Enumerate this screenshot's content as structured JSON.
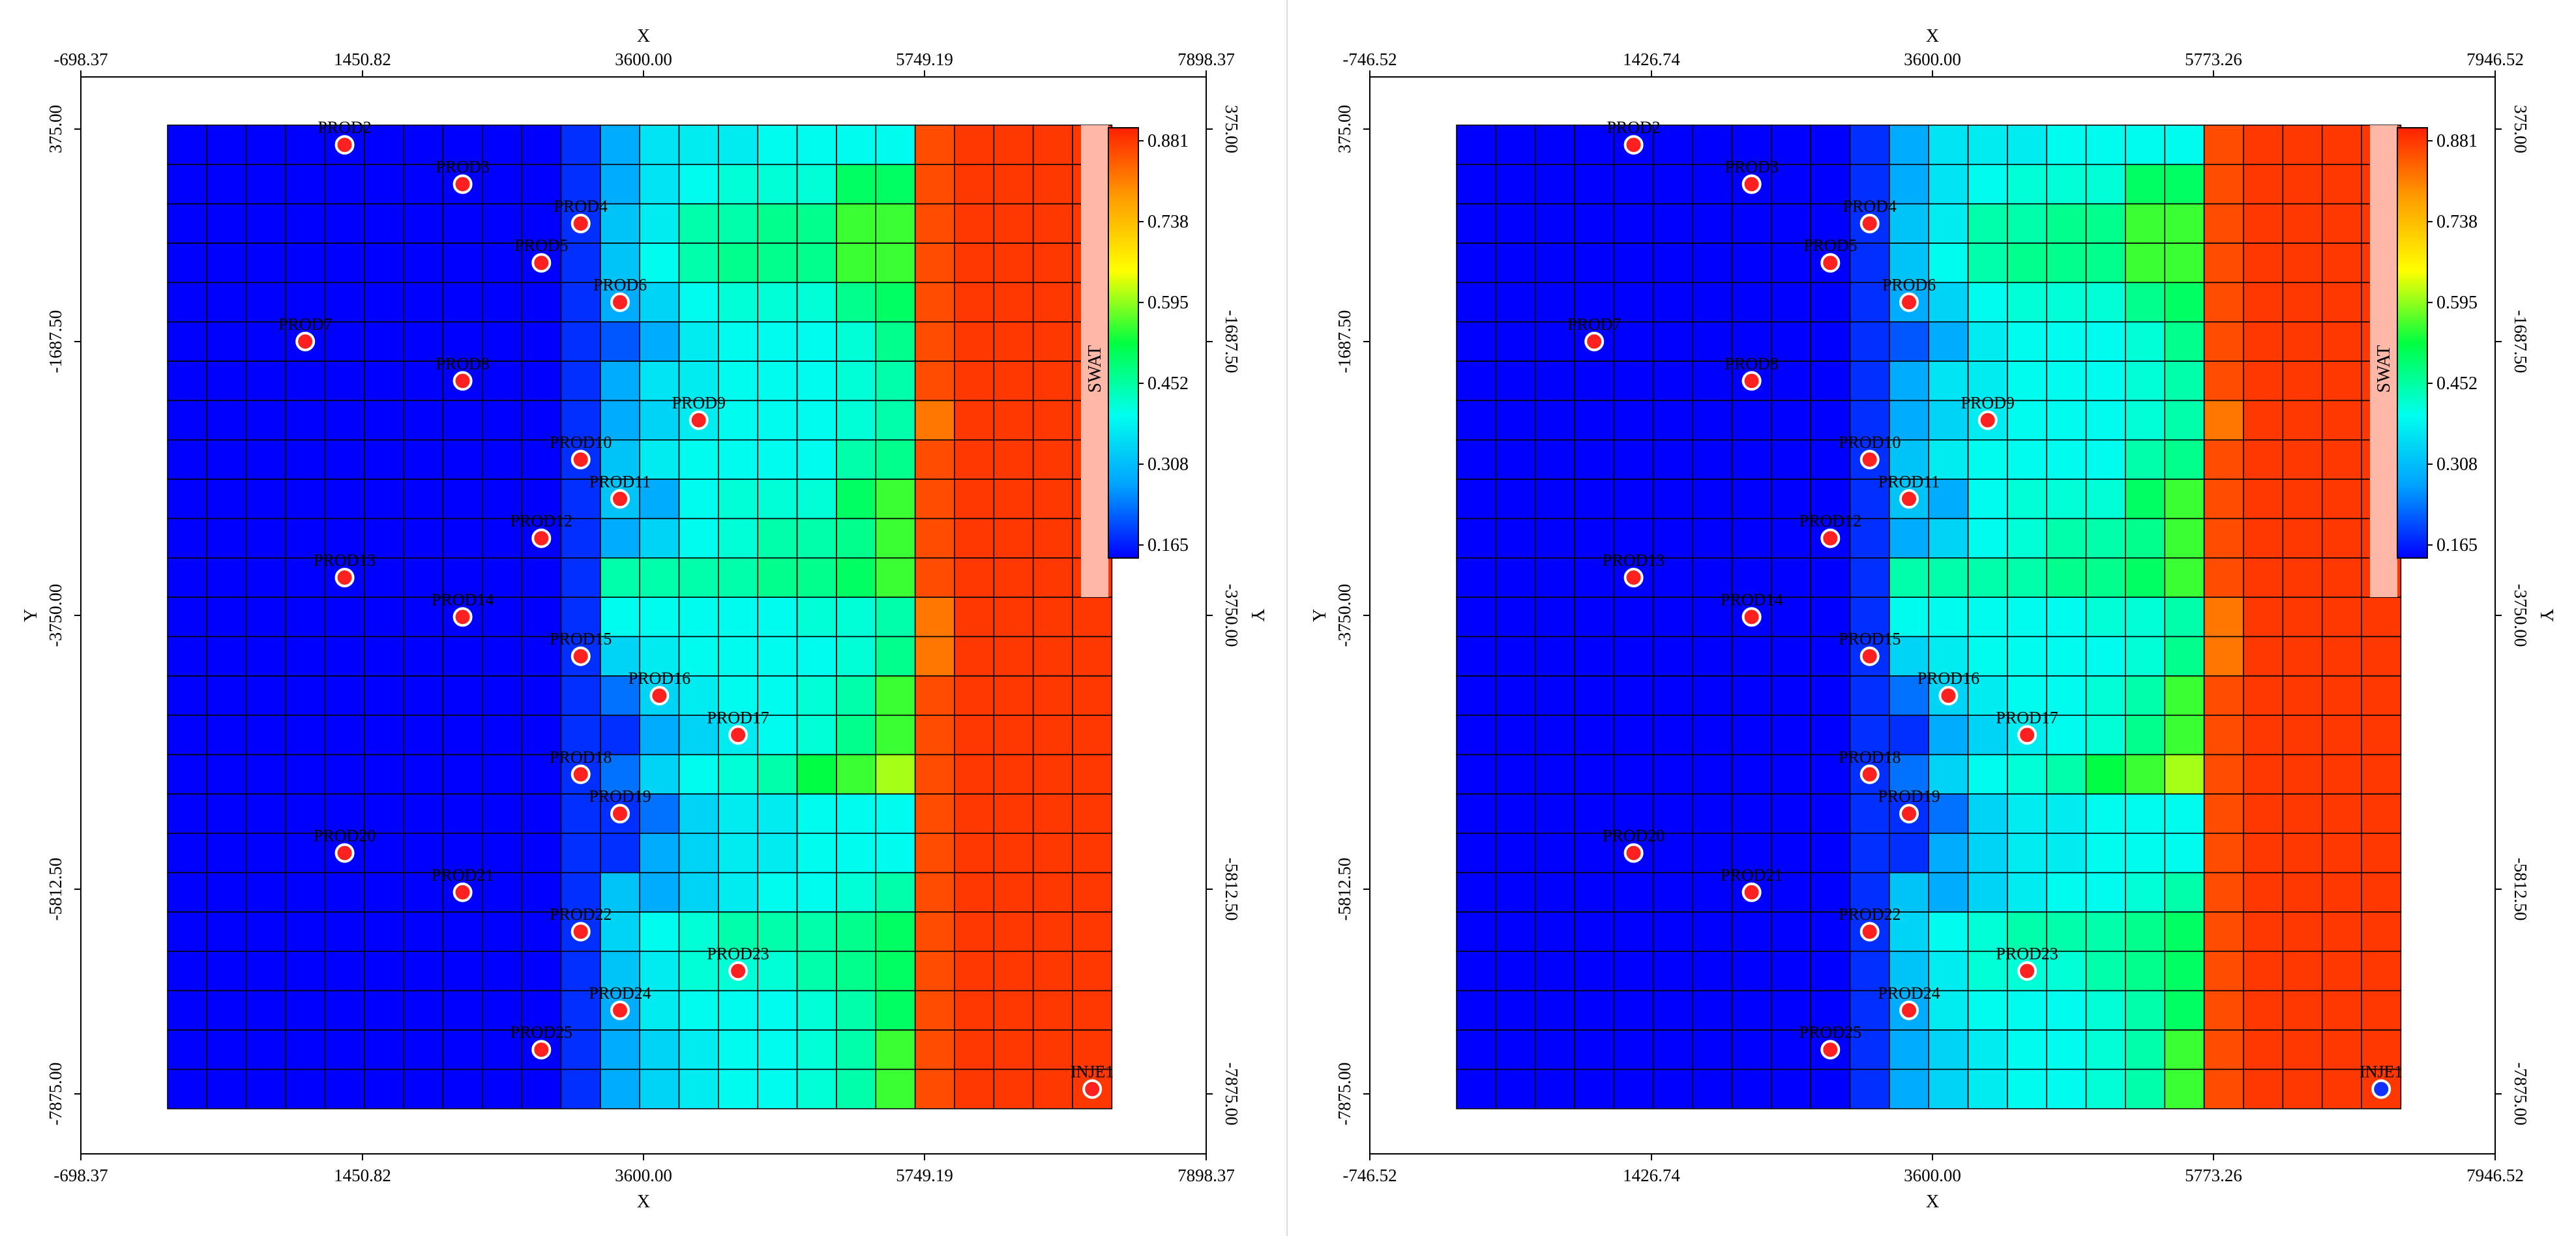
{
  "colors": {
    "well_producer": "#ff2020",
    "well_injector": "#1030ff",
    "cell_border": "#000000",
    "legend_tab": "#ffb8a8",
    "colorbar_stops": [
      "#0000ff",
      "#00a0ff",
      "#00ffee",
      "#00ff40",
      "#ffff00",
      "#ffa000",
      "#ff2000"
    ]
  },
  "grid_rows": [
    [
      0.165,
      0.165,
      0.165,
      0.165,
      0.165,
      0.165,
      0.165,
      0.165,
      0.165,
      0.165,
      0.2,
      0.3,
      0.37,
      0.38,
      0.38,
      0.4,
      0.4,
      0.4,
      0.4,
      0.84,
      0.86,
      0.86,
      0.86,
      0.86
    ],
    [
      0.165,
      0.165,
      0.165,
      0.165,
      0.165,
      0.165,
      0.165,
      0.165,
      0.165,
      0.165,
      0.2,
      0.3,
      0.37,
      0.4,
      0.42,
      0.42,
      0.42,
      0.5,
      0.5,
      0.84,
      0.86,
      0.86,
      0.86,
      0.86
    ],
    [
      0.165,
      0.165,
      0.165,
      0.165,
      0.165,
      0.165,
      0.165,
      0.165,
      0.165,
      0.165,
      0.2,
      0.33,
      0.38,
      0.45,
      0.45,
      0.47,
      0.47,
      0.55,
      0.55,
      0.84,
      0.86,
      0.86,
      0.86,
      0.86
    ],
    [
      0.165,
      0.165,
      0.165,
      0.165,
      0.165,
      0.165,
      0.165,
      0.165,
      0.165,
      0.165,
      0.2,
      0.33,
      0.4,
      0.45,
      0.47,
      0.47,
      0.47,
      0.55,
      0.55,
      0.84,
      0.86,
      0.86,
      0.86,
      0.86
    ],
    [
      0.165,
      0.165,
      0.165,
      0.165,
      0.165,
      0.165,
      0.165,
      0.165,
      0.165,
      0.165,
      0.2,
      0.3,
      0.35,
      0.4,
      0.42,
      0.42,
      0.42,
      0.47,
      0.5,
      0.84,
      0.86,
      0.86,
      0.86,
      0.86
    ],
    [
      0.165,
      0.165,
      0.165,
      0.165,
      0.165,
      0.165,
      0.165,
      0.165,
      0.165,
      0.165,
      0.2,
      0.23,
      0.3,
      0.38,
      0.4,
      0.4,
      0.4,
      0.42,
      0.47,
      0.84,
      0.86,
      0.86,
      0.86,
      0.86
    ],
    [
      0.165,
      0.165,
      0.165,
      0.165,
      0.165,
      0.165,
      0.165,
      0.165,
      0.165,
      0.165,
      0.2,
      0.3,
      0.37,
      0.38,
      0.4,
      0.4,
      0.4,
      0.42,
      0.45,
      0.84,
      0.86,
      0.86,
      0.86,
      0.86
    ],
    [
      0.165,
      0.165,
      0.165,
      0.165,
      0.165,
      0.165,
      0.165,
      0.165,
      0.165,
      0.165,
      0.2,
      0.3,
      0.35,
      0.38,
      0.4,
      0.4,
      0.4,
      0.42,
      0.45,
      0.8,
      0.86,
      0.86,
      0.86,
      0.86
    ],
    [
      0.165,
      0.165,
      0.165,
      0.165,
      0.165,
      0.165,
      0.165,
      0.165,
      0.165,
      0.165,
      0.2,
      0.33,
      0.38,
      0.4,
      0.4,
      0.4,
      0.4,
      0.45,
      0.47,
      0.84,
      0.86,
      0.86,
      0.86,
      0.86
    ],
    [
      0.165,
      0.165,
      0.165,
      0.165,
      0.165,
      0.165,
      0.165,
      0.165,
      0.165,
      0.165,
      0.2,
      0.33,
      0.3,
      0.4,
      0.42,
      0.42,
      0.42,
      0.5,
      0.55,
      0.84,
      0.86,
      0.86,
      0.86,
      0.86
    ],
    [
      0.165,
      0.165,
      0.165,
      0.165,
      0.165,
      0.165,
      0.165,
      0.165,
      0.165,
      0.165,
      0.2,
      0.3,
      0.35,
      0.4,
      0.42,
      0.45,
      0.45,
      0.47,
      0.55,
      0.84,
      0.86,
      0.86,
      0.86,
      0.86
    ],
    [
      0.165,
      0.165,
      0.165,
      0.165,
      0.165,
      0.165,
      0.165,
      0.165,
      0.165,
      0.165,
      0.2,
      0.45,
      0.45,
      0.45,
      0.45,
      0.47,
      0.47,
      0.5,
      0.55,
      0.84,
      0.86,
      0.86,
      0.86,
      0.86
    ],
    [
      0.165,
      0.165,
      0.165,
      0.165,
      0.165,
      0.165,
      0.165,
      0.165,
      0.165,
      0.165,
      0.2,
      0.4,
      0.4,
      0.4,
      0.4,
      0.4,
      0.42,
      0.42,
      0.45,
      0.8,
      0.86,
      0.86,
      0.86,
      0.86
    ],
    [
      0.165,
      0.165,
      0.165,
      0.165,
      0.165,
      0.165,
      0.165,
      0.165,
      0.165,
      0.165,
      0.2,
      0.35,
      0.38,
      0.4,
      0.4,
      0.4,
      0.4,
      0.42,
      0.47,
      0.8,
      0.86,
      0.86,
      0.86,
      0.86
    ],
    [
      0.165,
      0.165,
      0.165,
      0.165,
      0.165,
      0.165,
      0.165,
      0.165,
      0.165,
      0.165,
      0.2,
      0.25,
      0.35,
      0.38,
      0.4,
      0.4,
      0.42,
      0.45,
      0.55,
      0.84,
      0.86,
      0.86,
      0.86,
      0.86
    ],
    [
      0.165,
      0.165,
      0.165,
      0.165,
      0.165,
      0.165,
      0.165,
      0.165,
      0.165,
      0.165,
      0.2,
      0.2,
      0.3,
      0.35,
      0.38,
      0.4,
      0.42,
      0.47,
      0.55,
      0.84,
      0.86,
      0.86,
      0.86,
      0.86
    ],
    [
      0.165,
      0.165,
      0.165,
      0.165,
      0.165,
      0.165,
      0.165,
      0.165,
      0.165,
      0.165,
      0.2,
      0.25,
      0.35,
      0.4,
      0.42,
      0.45,
      0.52,
      0.55,
      0.6,
      0.84,
      0.86,
      0.86,
      0.86,
      0.86
    ],
    [
      0.165,
      0.165,
      0.165,
      0.165,
      0.165,
      0.165,
      0.165,
      0.165,
      0.165,
      0.165,
      0.2,
      0.2,
      0.25,
      0.35,
      0.38,
      0.38,
      0.4,
      0.4,
      0.4,
      0.84,
      0.86,
      0.86,
      0.86,
      0.86
    ],
    [
      0.165,
      0.165,
      0.165,
      0.165,
      0.165,
      0.165,
      0.165,
      0.165,
      0.165,
      0.165,
      0.2,
      0.2,
      0.3,
      0.35,
      0.38,
      0.38,
      0.4,
      0.4,
      0.4,
      0.84,
      0.86,
      0.86,
      0.86,
      0.86
    ],
    [
      0.165,
      0.165,
      0.165,
      0.165,
      0.165,
      0.165,
      0.165,
      0.165,
      0.165,
      0.165,
      0.2,
      0.33,
      0.3,
      0.35,
      0.38,
      0.4,
      0.4,
      0.42,
      0.45,
      0.84,
      0.86,
      0.86,
      0.86,
      0.86
    ],
    [
      0.165,
      0.165,
      0.165,
      0.165,
      0.165,
      0.165,
      0.165,
      0.165,
      0.165,
      0.165,
      0.2,
      0.35,
      0.4,
      0.42,
      0.45,
      0.45,
      0.45,
      0.47,
      0.5,
      0.84,
      0.86,
      0.86,
      0.86,
      0.86
    ],
    [
      0.165,
      0.165,
      0.165,
      0.165,
      0.165,
      0.165,
      0.165,
      0.165,
      0.165,
      0.165,
      0.2,
      0.33,
      0.38,
      0.42,
      0.42,
      0.42,
      0.45,
      0.47,
      0.5,
      0.84,
      0.86,
      0.86,
      0.86,
      0.86
    ],
    [
      0.165,
      0.165,
      0.165,
      0.165,
      0.165,
      0.165,
      0.165,
      0.165,
      0.165,
      0.165,
      0.2,
      0.3,
      0.38,
      0.4,
      0.4,
      0.4,
      0.42,
      0.45,
      0.5,
      0.84,
      0.86,
      0.86,
      0.86,
      0.86
    ],
    [
      0.165,
      0.165,
      0.165,
      0.165,
      0.165,
      0.165,
      0.165,
      0.165,
      0.165,
      0.165,
      0.2,
      0.3,
      0.35,
      0.38,
      0.4,
      0.4,
      0.42,
      0.45,
      0.55,
      0.84,
      0.86,
      0.86,
      0.86,
      0.86
    ],
    [
      0.165,
      0.165,
      0.165,
      0.165,
      0.165,
      0.165,
      0.165,
      0.165,
      0.165,
      0.165,
      0.2,
      0.3,
      0.35,
      0.38,
      0.4,
      0.4,
      0.42,
      0.45,
      0.55,
      0.84,
      0.86,
      0.86,
      0.86,
      0.86
    ]
  ],
  "wells": [
    {
      "name": "PROD2",
      "col": 4,
      "row": 0,
      "type": "producer"
    },
    {
      "name": "PROD3",
      "col": 7,
      "row": 1,
      "type": "producer"
    },
    {
      "name": "PROD4",
      "col": 10,
      "row": 2,
      "type": "producer"
    },
    {
      "name": "PROD5",
      "col": 9,
      "row": 3,
      "type": "producer"
    },
    {
      "name": "PROD6",
      "col": 11,
      "row": 4,
      "type": "producer"
    },
    {
      "name": "PROD7",
      "col": 3,
      "row": 5,
      "type": "producer"
    },
    {
      "name": "PROD8",
      "col": 7,
      "row": 6,
      "type": "producer"
    },
    {
      "name": "PROD9",
      "col": 13,
      "row": 7,
      "type": "producer"
    },
    {
      "name": "PROD10",
      "col": 10,
      "row": 8,
      "type": "producer"
    },
    {
      "name": "PROD11",
      "col": 11,
      "row": 9,
      "type": "producer"
    },
    {
      "name": "PROD12",
      "col": 9,
      "row": 10,
      "type": "producer"
    },
    {
      "name": "PROD13",
      "col": 4,
      "row": 11,
      "type": "producer"
    },
    {
      "name": "PROD14",
      "col": 7,
      "row": 12,
      "type": "producer"
    },
    {
      "name": "PROD15",
      "col": 10,
      "row": 13,
      "type": "producer"
    },
    {
      "name": "PROD16",
      "col": 12,
      "row": 14,
      "type": "producer"
    },
    {
      "name": "PROD17",
      "col": 14,
      "row": 15,
      "type": "producer"
    },
    {
      "name": "PROD18",
      "col": 10,
      "row": 16,
      "type": "producer"
    },
    {
      "name": "PROD19",
      "col": 11,
      "row": 17,
      "type": "producer"
    },
    {
      "name": "PROD20",
      "col": 4,
      "row": 18,
      "type": "producer"
    },
    {
      "name": "PROD21",
      "col": 7,
      "row": 19,
      "type": "producer"
    },
    {
      "name": "PROD22",
      "col": 10,
      "row": 20,
      "type": "producer"
    },
    {
      "name": "PROD23",
      "col": 14,
      "row": 21,
      "type": "producer"
    },
    {
      "name": "PROD24",
      "col": 11,
      "row": 22,
      "type": "producer"
    },
    {
      "name": "PROD25",
      "col": 9,
      "row": 23,
      "type": "producer"
    },
    {
      "name": "INJE1",
      "col": 23,
      "row": 24,
      "type": "injector"
    }
  ],
  "colorbar": {
    "property": "SWAT",
    "ticks": [
      "0.881",
      "0.738",
      "0.595",
      "0.452",
      "0.308",
      "0.165"
    ]
  },
  "plots": [
    {
      "x_title": "X",
      "y_title": "Y",
      "x_ticks": [
        "-698.37",
        "1450.82",
        "3600.00",
        "5749.19",
        "7898.37"
      ],
      "y_ticks": [
        "375.00",
        "-1687.50",
        "-3750.00",
        "-5812.50",
        "-7875.00"
      ],
      "injector_color": "#ff2020"
    },
    {
      "x_title": "X",
      "y_title": "Y",
      "x_ticks": [
        "-746.52",
        "1426.74",
        "3600.00",
        "5773.26",
        "7946.52"
      ],
      "y_ticks": [
        "375.00",
        "-1687.50",
        "-3750.00",
        "-5812.50",
        "-7875.00"
      ],
      "injector_color": "#1030ff"
    }
  ]
}
